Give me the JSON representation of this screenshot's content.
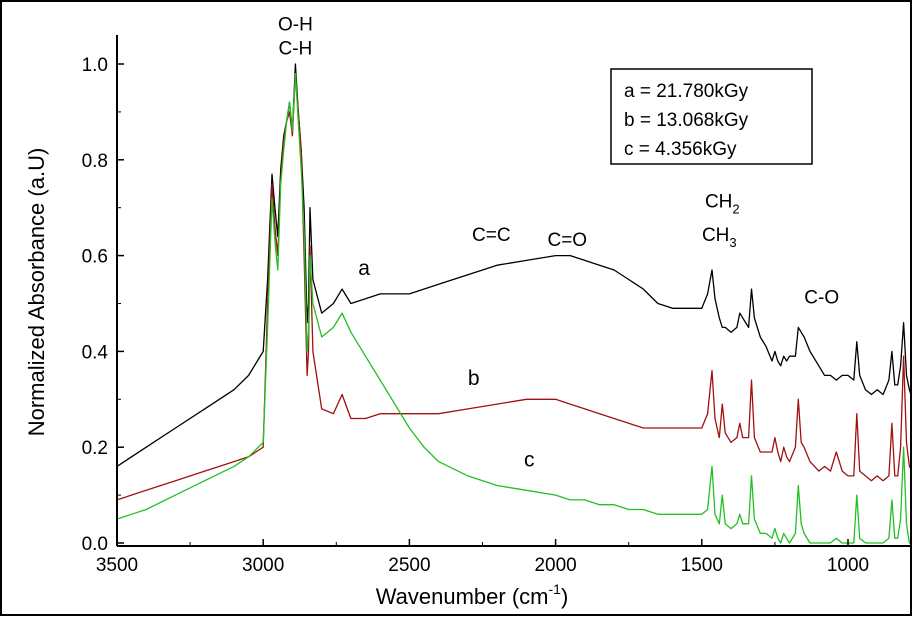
{
  "chart_data": {
    "type": "line",
    "xlabel": "Wavenumber (cm",
    "xlabel_sup": "-1",
    "xlabel_end": ")",
    "ylabel": "Normalized Absorbance (a.U)",
    "xlim": [
      3500,
      750
    ],
    "ylim": [
      0.0,
      1.05
    ],
    "x_reversed": true,
    "x_ticks": [
      3500,
      3000,
      2500,
      2000,
      1500,
      1000
    ],
    "x_tick_labels": [
      "3500",
      "3000",
      "2500",
      "2000",
      "1500",
      "1000"
    ],
    "y_ticks": [
      0.0,
      0.2,
      0.4,
      0.6,
      0.8,
      1.0
    ],
    "y_tick_labels": [
      "0.0",
      "0.2",
      "0.4",
      "0.6",
      "0.8",
      "1.0"
    ],
    "grid": false,
    "legend_position": "top-right",
    "legend": [
      "a = 21.780kGy",
      "b = 13.068kGy",
      "c = 4.356kGy"
    ],
    "series": [
      {
        "name": "a",
        "color": "#000000",
        "x": [
          3500,
          3400,
          3300,
          3200,
          3100,
          3050,
          3000,
          2985,
          2970,
          2960,
          2950,
          2940,
          2930,
          2920,
          2910,
          2900,
          2890,
          2880,
          2870,
          2860,
          2850,
          2845,
          2840,
          2830,
          2800,
          2760,
          2730,
          2700,
          2650,
          2600,
          2500,
          2400,
          2300,
          2200,
          2100,
          2000,
          1950,
          1900,
          1850,
          1800,
          1750,
          1700,
          1650,
          1600,
          1550,
          1500,
          1480,
          1465,
          1455,
          1440,
          1430,
          1420,
          1400,
          1380,
          1370,
          1360,
          1340,
          1330,
          1320,
          1300,
          1280,
          1260,
          1250,
          1240,
          1230,
          1220,
          1210,
          1200,
          1180,
          1170,
          1160,
          1150,
          1130,
          1100,
          1080,
          1060,
          1040,
          1020,
          1000,
          980,
          970,
          960,
          940,
          920,
          900,
          880,
          860,
          850,
          840,
          830,
          820,
          810,
          800,
          790,
          780,
          760,
          750
        ],
        "y": [
          0.16,
          0.2,
          0.24,
          0.28,
          0.32,
          0.35,
          0.4,
          0.55,
          0.77,
          0.7,
          0.64,
          0.78,
          0.85,
          0.88,
          0.92,
          0.86,
          1.0,
          0.9,
          0.82,
          0.7,
          0.46,
          0.5,
          0.7,
          0.55,
          0.48,
          0.5,
          0.53,
          0.5,
          0.51,
          0.52,
          0.52,
          0.54,
          0.56,
          0.58,
          0.59,
          0.6,
          0.6,
          0.59,
          0.58,
          0.57,
          0.55,
          0.53,
          0.5,
          0.49,
          0.49,
          0.49,
          0.52,
          0.57,
          0.51,
          0.47,
          0.45,
          0.45,
          0.44,
          0.45,
          0.48,
          0.47,
          0.45,
          0.53,
          0.47,
          0.43,
          0.41,
          0.38,
          0.4,
          0.38,
          0.37,
          0.39,
          0.38,
          0.39,
          0.39,
          0.45,
          0.44,
          0.43,
          0.4,
          0.37,
          0.35,
          0.35,
          0.34,
          0.35,
          0.35,
          0.34,
          0.42,
          0.35,
          0.32,
          0.31,
          0.32,
          0.31,
          0.34,
          0.4,
          0.33,
          0.33,
          0.37,
          0.46,
          0.35,
          0.32,
          0.3,
          0.29,
          0.28
        ]
      },
      {
        "name": "b",
        "color": "#a01010",
        "x": [
          3500,
          3400,
          3300,
          3200,
          3100,
          3050,
          3000,
          2985,
          2970,
          2960,
          2950,
          2940,
          2930,
          2920,
          2910,
          2900,
          2890,
          2880,
          2870,
          2860,
          2850,
          2845,
          2840,
          2830,
          2800,
          2760,
          2730,
          2700,
          2650,
          2600,
          2500,
          2400,
          2300,
          2200,
          2100,
          2000,
          1950,
          1900,
          1850,
          1800,
          1750,
          1700,
          1650,
          1600,
          1550,
          1500,
          1480,
          1465,
          1455,
          1440,
          1430,
          1420,
          1400,
          1380,
          1370,
          1360,
          1340,
          1330,
          1320,
          1300,
          1280,
          1260,
          1250,
          1240,
          1230,
          1220,
          1210,
          1200,
          1180,
          1170,
          1160,
          1150,
          1130,
          1100,
          1080,
          1060,
          1040,
          1020,
          1000,
          980,
          970,
          960,
          940,
          920,
          900,
          880,
          860,
          850,
          840,
          830,
          820,
          810,
          800,
          790,
          780,
          760,
          750
        ],
        "y": [
          0.09,
          0.11,
          0.13,
          0.15,
          0.17,
          0.18,
          0.2,
          0.5,
          0.75,
          0.66,
          0.6,
          0.76,
          0.84,
          0.88,
          0.9,
          0.85,
          0.98,
          0.9,
          0.82,
          0.6,
          0.35,
          0.4,
          0.62,
          0.4,
          0.28,
          0.27,
          0.31,
          0.26,
          0.26,
          0.27,
          0.27,
          0.27,
          0.28,
          0.29,
          0.3,
          0.3,
          0.29,
          0.28,
          0.27,
          0.26,
          0.25,
          0.24,
          0.24,
          0.24,
          0.24,
          0.24,
          0.27,
          0.36,
          0.26,
          0.22,
          0.29,
          0.23,
          0.21,
          0.22,
          0.25,
          0.22,
          0.22,
          0.34,
          0.22,
          0.19,
          0.19,
          0.19,
          0.22,
          0.19,
          0.17,
          0.2,
          0.18,
          0.17,
          0.2,
          0.3,
          0.21,
          0.2,
          0.17,
          0.15,
          0.16,
          0.15,
          0.19,
          0.15,
          0.14,
          0.14,
          0.27,
          0.15,
          0.14,
          0.13,
          0.14,
          0.13,
          0.14,
          0.25,
          0.14,
          0.14,
          0.2,
          0.39,
          0.21,
          0.16,
          0.15,
          0.14,
          0.13
        ]
      },
      {
        "name": "c",
        "color": "#22c022",
        "x": [
          3500,
          3400,
          3300,
          3200,
          3100,
          3050,
          3000,
          2985,
          2970,
          2960,
          2950,
          2940,
          2930,
          2920,
          2910,
          2900,
          2890,
          2880,
          2870,
          2860,
          2850,
          2845,
          2840,
          2830,
          2800,
          2760,
          2730,
          2700,
          2650,
          2600,
          2550,
          2500,
          2450,
          2400,
          2300,
          2200,
          2100,
          2000,
          1950,
          1900,
          1850,
          1800,
          1750,
          1700,
          1650,
          1600,
          1550,
          1500,
          1480,
          1465,
          1455,
          1440,
          1430,
          1420,
          1400,
          1380,
          1370,
          1360,
          1340,
          1330,
          1320,
          1300,
          1280,
          1260,
          1250,
          1240,
          1230,
          1220,
          1210,
          1200,
          1180,
          1170,
          1160,
          1150,
          1130,
          1100,
          1080,
          1060,
          1040,
          1020,
          1000,
          980,
          970,
          960,
          940,
          920,
          900,
          880,
          860,
          850,
          840,
          830,
          820,
          810,
          800,
          790,
          780,
          760,
          750
        ],
        "y": [
          0.05,
          0.07,
          0.1,
          0.13,
          0.16,
          0.18,
          0.21,
          0.45,
          0.72,
          0.63,
          0.57,
          0.75,
          0.82,
          0.88,
          0.92,
          0.86,
          0.98,
          0.88,
          0.78,
          0.65,
          0.4,
          0.44,
          0.6,
          0.5,
          0.43,
          0.45,
          0.48,
          0.44,
          0.39,
          0.34,
          0.29,
          0.24,
          0.2,
          0.17,
          0.14,
          0.12,
          0.11,
          0.1,
          0.09,
          0.09,
          0.08,
          0.08,
          0.07,
          0.07,
          0.06,
          0.06,
          0.06,
          0.06,
          0.07,
          0.16,
          0.06,
          0.04,
          0.1,
          0.04,
          0.03,
          0.04,
          0.06,
          0.04,
          0.04,
          0.14,
          0.05,
          0.02,
          0.02,
          0.01,
          0.03,
          0.01,
          0.0,
          0.02,
          0.01,
          0.0,
          0.02,
          0.12,
          0.04,
          0.02,
          0.0,
          0.0,
          0.0,
          0.0,
          0.01,
          0.0,
          0.0,
          0.0,
          0.1,
          0.01,
          0.0,
          0.0,
          0.0,
          0.0,
          0.01,
          0.09,
          0.01,
          0.01,
          0.05,
          0.2,
          0.04,
          0.0,
          0.0,
          0.0,
          0.0
        ]
      }
    ],
    "annotations": [
      {
        "id": "oh",
        "text": "O-H",
        "x": 2890,
        "y": 1.07
      },
      {
        "id": "ch",
        "text": "C-H",
        "x": 2890,
        "y": 1.02
      },
      {
        "id": "cc",
        "text": "C=C",
        "x": 2220,
        "y": 0.63
      },
      {
        "id": "co_double",
        "text": "C=O",
        "x": 1960,
        "y": 0.62
      },
      {
        "id": "ch2",
        "text": "CH",
        "sub": "2",
        "x": 1430,
        "y": 0.7
      },
      {
        "id": "ch3",
        "text": "CH",
        "sub": "3",
        "x": 1440,
        "y": 0.63
      },
      {
        "id": "co_single",
        "text": "C-O",
        "x": 1090,
        "y": 0.5
      },
      {
        "id": "label_a",
        "text": "a",
        "x": 2655,
        "y": 0.56
      },
      {
        "id": "label_b",
        "text": "b",
        "x": 2280,
        "y": 0.33
      },
      {
        "id": "label_c",
        "text": "c",
        "x": 2090,
        "y": 0.16
      }
    ]
  }
}
